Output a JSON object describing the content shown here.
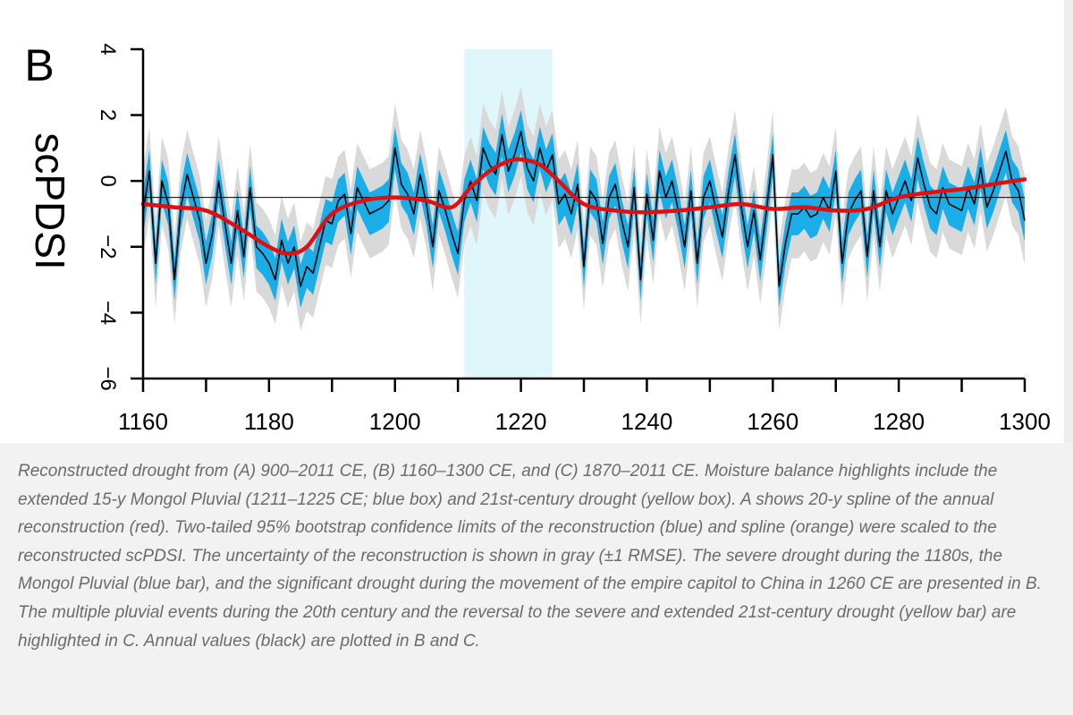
{
  "panel_label": "B",
  "caption": "Reconstructed drought from (A) 900–2011 CE, (B) 1160–1300 CE, and (C) 1870–2011 CE. Moisture balance highlights include the extended 15-y Mongol Pluvial (1211–1225 CE; blue box) and 21st-century drought (yellow box). A shows 20-y spline of the annual reconstruction (red). Two-tailed 95% bootstrap confidence limits of the reconstruction (blue) and spline (orange) were scaled to the reconstructed scPDSI. The uncertainty of the reconstruction is shown in gray (±1 RMSE). The severe drought during the 1180s, the Mongol Pluvial (blue bar), and the significant drought during the movement of the empire capitol to China in 1260 CE are presented in B. The multiple pluvial events during the 20th century and the reversal to the severe and extended 21st-century drought (yellow bar) are highlighted in C. Annual values (black) are plotted in B and C.",
  "chart_data": {
    "type": "line",
    "ylabel": "scPDSI",
    "xlim": [
      1160,
      1300
    ],
    "ylim": [
      -6,
      4
    ],
    "xticks": [
      1160,
      1180,
      1200,
      1220,
      1240,
      1260,
      1280,
      1300
    ],
    "yticks": [
      -6,
      -4,
      -2,
      0,
      2,
      4
    ],
    "minor_xticks": [
      1170,
      1190,
      1210,
      1230,
      1250,
      1270,
      1290
    ],
    "reference_line": -0.5,
    "highlight": {
      "x_start": 1211,
      "x_end": 1225,
      "color": "#dff6fb"
    },
    "colors": {
      "annual": "#000000",
      "spline": "#e01010",
      "blue_band": "#1aaee8",
      "gray_band": "#d9d9d9",
      "reference": "#000000"
    },
    "series": [
      {
        "role": "annual",
        "x": [
          1160,
          1161,
          1162,
          1163,
          1164,
          1165,
          1166,
          1167,
          1168,
          1169,
          1170,
          1171,
          1172,
          1173,
          1174,
          1175,
          1176,
          1177,
          1178,
          1179,
          1180,
          1181,
          1182,
          1183,
          1184,
          1185,
          1186,
          1187,
          1188,
          1189,
          1190,
          1191,
          1192,
          1193,
          1194,
          1195,
          1196,
          1197,
          1198,
          1199,
          1200,
          1201,
          1202,
          1203,
          1204,
          1205,
          1206,
          1207,
          1208,
          1209,
          1210,
          1211,
          1212,
          1213,
          1214,
          1215,
          1216,
          1217,
          1218,
          1219,
          1220,
          1221,
          1222,
          1223,
          1224,
          1225,
          1226,
          1227,
          1228,
          1229,
          1230,
          1231,
          1232,
          1233,
          1234,
          1235,
          1236,
          1237,
          1238,
          1239,
          1240,
          1241,
          1242,
          1243,
          1244,
          1245,
          1246,
          1247,
          1248,
          1249,
          1250,
          1251,
          1252,
          1253,
          1254,
          1255,
          1256,
          1257,
          1258,
          1259,
          1260,
          1261,
          1262,
          1263,
          1264,
          1265,
          1266,
          1267,
          1268,
          1269,
          1270,
          1271,
          1272,
          1273,
          1274,
          1275,
          1276,
          1277,
          1278,
          1279,
          1280,
          1281,
          1282,
          1283,
          1284,
          1285,
          1286,
          1287,
          1288,
          1289,
          1290,
          1291,
          1292,
          1293,
          1294,
          1295,
          1296,
          1297,
          1298,
          1299,
          1300
        ],
        "values": [
          -1.0,
          0.3,
          -2.5,
          0.0,
          -0.7,
          -3.0,
          -0.8,
          0.2,
          -0.5,
          -1.2,
          -2.5,
          -1.6,
          0.0,
          -1.3,
          -2.5,
          -0.9,
          -2.3,
          -0.2,
          -2.0,
          -2.2,
          -2.5,
          -3.0,
          -1.8,
          -2.5,
          -2.0,
          -3.2,
          -2.6,
          -2.8,
          -2.0,
          -1.2,
          -1.3,
          -0.6,
          -0.4,
          -1.6,
          -0.2,
          -0.6,
          -1.0,
          -0.9,
          -0.8,
          -0.6,
          1.0,
          -0.1,
          -0.4,
          -1.0,
          0.2,
          -0.7,
          -2.0,
          -0.3,
          -0.9,
          -1.6,
          -2.2,
          -0.6,
          0.0,
          -0.6,
          1.0,
          0.5,
          0.2,
          1.4,
          0.3,
          0.8,
          1.5,
          0.4,
          0.0,
          1.0,
          0.3,
          0.8,
          -0.7,
          -0.4,
          -1.0,
          -0.1,
          -2.6,
          -0.3,
          -0.6,
          -1.9,
          -0.5,
          -0.1,
          -1.2,
          -2.0,
          -0.2,
          -3.0,
          -0.4,
          -1.8,
          0.3,
          -0.5,
          0.0,
          -0.9,
          -2.0,
          -0.3,
          -2.5,
          -0.5,
          0.0,
          -0.9,
          -1.7,
          -0.3,
          0.8,
          -0.8,
          -2.0,
          -0.9,
          -2.4,
          -0.9,
          0.8,
          -3.2,
          -1.9,
          -1.0,
          -1.0,
          -0.8,
          -1.1,
          -1.0,
          -0.5,
          -0.9,
          0.3,
          -2.5,
          -1.0,
          -0.6,
          -0.3,
          -2.3,
          -0.3,
          -2.0,
          -0.3,
          -1.0,
          -0.5,
          0.0,
          -0.6,
          0.7,
          -0.1,
          -0.8,
          -1.0,
          -0.2,
          -0.7,
          -0.8,
          -0.9,
          -0.2,
          -0.7,
          0.4,
          -0.8,
          -0.3,
          0.3,
          0.9,
          0.0,
          -0.3,
          -1.2
        ]
      },
      {
        "role": "spline",
        "x": [
          1160,
          1165,
          1170,
          1175,
          1180,
          1183,
          1186,
          1190,
          1195,
          1200,
          1205,
          1209,
          1212,
          1215,
          1218,
          1220,
          1223,
          1226,
          1230,
          1235,
          1240,
          1245,
          1250,
          1255,
          1260,
          1265,
          1270,
          1275,
          1280,
          1285,
          1290,
          1295,
          1300
        ],
        "values": [
          -0.7,
          -0.8,
          -0.9,
          -1.4,
          -2.0,
          -2.2,
          -2.0,
          -1.0,
          -0.6,
          -0.5,
          -0.6,
          -0.8,
          -0.2,
          0.3,
          0.6,
          0.65,
          0.5,
          0.0,
          -0.7,
          -0.9,
          -0.95,
          -0.9,
          -0.8,
          -0.7,
          -0.85,
          -0.8,
          -0.9,
          -0.85,
          -0.5,
          -0.35,
          -0.25,
          -0.1,
          0.05
        ]
      }
    ]
  }
}
